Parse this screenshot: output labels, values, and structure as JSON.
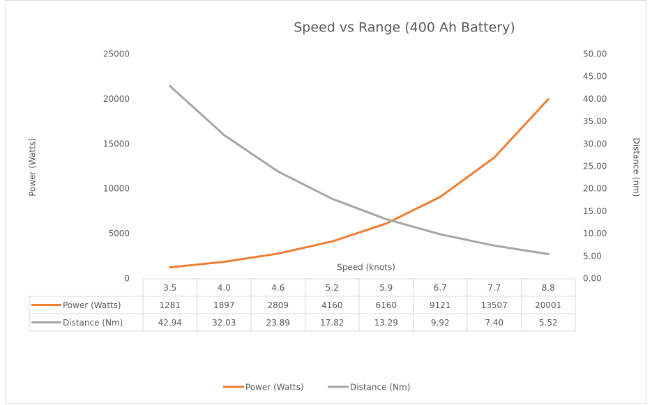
{
  "chart_data": {
    "type": "line",
    "title": "Speed vs Range (400 Ah Battery)",
    "x_label": "Speed (knots)",
    "y_label": "Power (Watts)",
    "y2_label": "Distance (nm)",
    "categories": [
      "3.5",
      "4.0",
      "4.6",
      "5.2",
      "5.9",
      "6.7",
      "7.7",
      "8.8"
    ],
    "series": [
      {
        "name": "Power (Watts)",
        "color": "#ed7d31",
        "axis": "y",
        "values": [
          1281,
          1897,
          2809,
          4160,
          6160,
          9121,
          13507,
          20001
        ]
      },
      {
        "name": "Distance (Nm)",
        "color": "#a5a5a5",
        "axis": "y2",
        "values": [
          42.94,
          32.03,
          23.89,
          17.82,
          13.29,
          9.92,
          7.4,
          5.52
        ],
        "value_labels": [
          "42.94",
          "32.03",
          "23.89",
          "17.82",
          "13.29",
          "9.92",
          "7.40",
          "5.52"
        ]
      }
    ],
    "ylim": [
      0,
      25000
    ],
    "yticks": [
      0,
      5000,
      10000,
      15000,
      20000,
      25000
    ],
    "y2lim": [
      0,
      50
    ],
    "y2ticks": [
      {
        "value": 0,
        "label": "0.00"
      },
      {
        "value": 5,
        "label": "5.00"
      },
      {
        "value": 10,
        "label": "10.00"
      },
      {
        "value": 15,
        "label": "15.00"
      },
      {
        "value": 20,
        "label": "20.00"
      },
      {
        "value": 25,
        "label": "25.00"
      },
      {
        "value": 30,
        "label": "30.00"
      },
      {
        "value": 35,
        "label": "35.00"
      },
      {
        "value": 40,
        "label": "40.00"
      },
      {
        "value": 45,
        "label": "45.00"
      },
      {
        "value": 50,
        "label": "50.00"
      }
    ],
    "grid": false,
    "legend": "bottom",
    "data_table": true
  }
}
